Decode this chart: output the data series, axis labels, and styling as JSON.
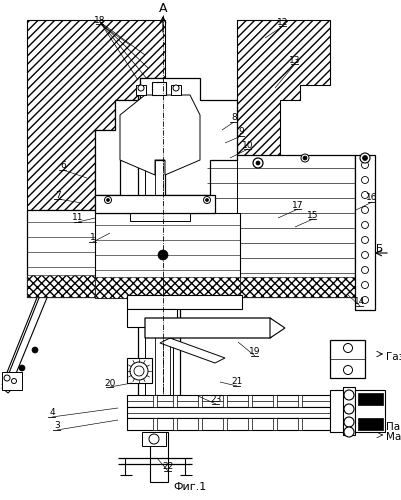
{
  "bg": "#ffffff",
  "lc": "#000000",
  "fig_title": "Фиг.1",
  "axis_label": "А",
  "label_B": "Б",
  "label_Gaz": "Газ",
  "label_Par": "Пар",
  "label_Mazut": "Мазут",
  "fig_w": 4.02,
  "fig_h": 5.0,
  "dpi": 100
}
